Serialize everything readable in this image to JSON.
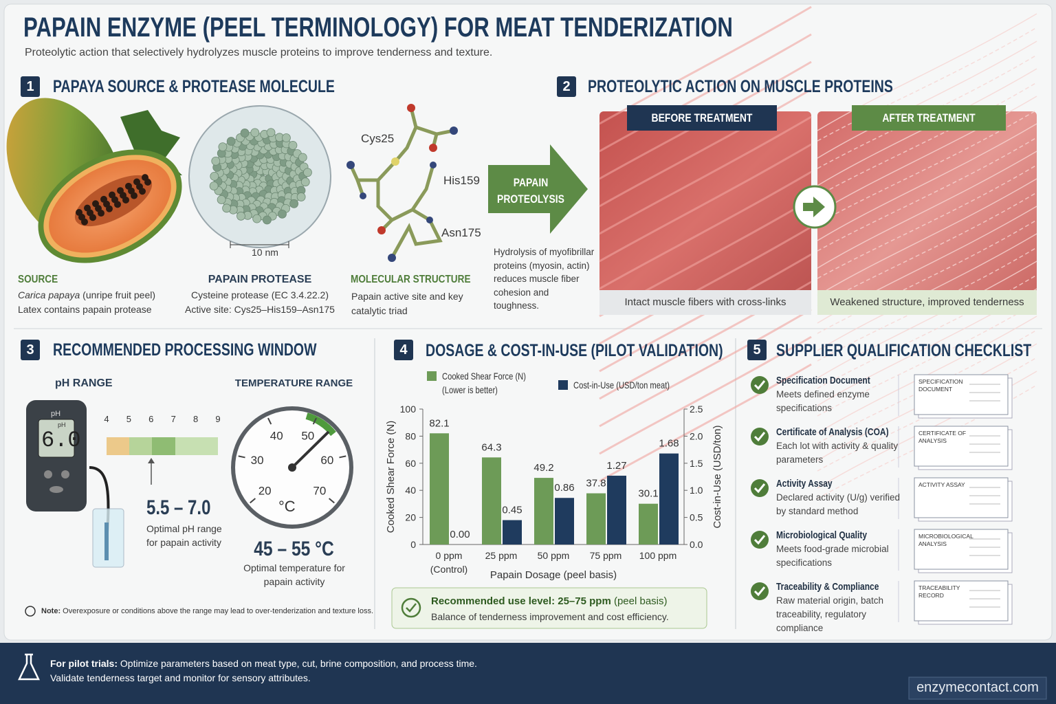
{
  "header": {
    "title": "PAPAIN ENZYME (PEEL TERMINOLOGY) FOR MEAT TENDERIZATION",
    "subtitle": "Proteolytic action that selectively hydrolyzes muscle proteins to improve tenderness and texture."
  },
  "sections": [
    {
      "number": "1",
      "title": "PAPAYA SOURCE & PROTEASE MOLECULE",
      "source": {
        "label": "SOURCE",
        "species": "Carica papaya",
        "note": "(unripe fruit peel)",
        "detail": "Latex contains papain protease"
      },
      "protease": {
        "label": "PAPAIN PROTEASE",
        "scale": "10 nm",
        "lines": [
          "Cysteine protease (EC 3.4.22.2)",
          "Active site: Cys25–His159–Asn175"
        ]
      },
      "structure": {
        "label": "MOLECULAR STRUCTURE",
        "residues": [
          "Cys25",
          "His159",
          "Asn175"
        ],
        "description": "Papain active site and key catalytic triad"
      }
    },
    {
      "number": "2",
      "title": "PROTEOLYTIC ACTION ON MUSCLE PROTEINS",
      "arrow_label": [
        "PAPAIN",
        "PROTEOLYSIS"
      ],
      "description": "Hydrolysis of myofibrillar proteins (myosin, actin) reduces muscle fiber cohesion and toughness.",
      "before": {
        "label": "BEFORE TREATMENT",
        "caption": "Intact muscle fibers with cross-links"
      },
      "after": {
        "label": "AFTER TREATMENT",
        "caption": "Weakened structure, improved tenderness"
      }
    },
    {
      "number": "3",
      "title": "RECOMMENDED PROCESSING WINDOW",
      "ph": {
        "title": "pH RANGE",
        "meter_unit": "pH",
        "meter_reading": "6.0",
        "scale": [
          4,
          5,
          6,
          7,
          8,
          9
        ],
        "range": "5.5 – 7.0",
        "description": "Optimal pH range for papain activity"
      },
      "temperature": {
        "title": "TEMPERATURE RANGE",
        "dial": [
          20,
          30,
          40,
          50,
          60,
          70
        ],
        "unit": "°C",
        "range": "45 – 55 °C",
        "description": "Optimal temperature for papain activity"
      },
      "note": {
        "label": "Note:",
        "text": "Overexposure or conditions above the range may lead to over-tenderization and texture loss."
      }
    },
    {
      "number": "4",
      "title": "DOSAGE & COST-IN-USE (PILOT VALIDATION)",
      "recommendation": {
        "headline": "Recommended use level: 25–75 ppm",
        "qualifier": "(peel basis)",
        "text": "Balance of tenderness improvement and cost efficiency."
      }
    },
    {
      "number": "5",
      "title": "SUPPLIER QUALIFICATION CHECKLIST",
      "items": [
        {
          "title": "Specification Document",
          "description": "Meets defined enzyme specifications",
          "document": "SPECIFICATION DOCUMENT"
        },
        {
          "title": "Certificate of Analysis (COA)",
          "description": "Each lot with activity & quality parameters",
          "document": "CERTIFICATE OF ANALYSIS"
        },
        {
          "title": "Activity Assay",
          "description": "Declared activity (U/g) verified by standard method",
          "document": "ACTIVITY ASSAY"
        },
        {
          "title": "Microbiological Quality",
          "description": "Meets food-grade microbial specifications",
          "document": "MICROBIOLOGICAL ANALYSIS"
        },
        {
          "title": "Traceability & Compliance",
          "description": "Raw material origin, batch traceability, regulatory compliance",
          "document": "TRACEABILITY RECORD"
        }
      ]
    }
  ],
  "chart_data": {
    "type": "bar",
    "categories": [
      "0 ppm (Control)",
      "25 ppm",
      "50 ppm",
      "75 ppm",
      "100 ppm"
    ],
    "xlabel": "Papain Dosage (peel basis)",
    "ylabel": "Cooked Shear Force (N)",
    "y2label": "Cost-in-Use (USD/ton)",
    "ylim": [
      0,
      100
    ],
    "yticks": [
      0,
      20,
      40,
      60,
      80,
      100
    ],
    "y2lim": [
      0,
      2.5
    ],
    "y2ticks": [
      {
        "value": 0,
        "label": "0.0"
      },
      0.5,
      {
        "value": 1,
        "label": "1.0"
      },
      1.5,
      {
        "value": 2,
        "label": "2.0"
      },
      2.5
    ],
    "series": [
      {
        "name": "Cooked Shear Force (N)",
        "legend_note": "(Lower is better)",
        "color": "#6d9b57",
        "values": [
          82.1,
          64.3,
          49.2,
          37.8,
          30.1
        ]
      },
      {
        "name": "Cost-in-Use (USD/ton meat)",
        "color": "#1f3b5e",
        "axis": "y2",
        "values": [
          0,
          0.45,
          0.86,
          1.27,
          1.68
        ],
        "value_labels": [
          "0.00",
          "0.45",
          "0.86",
          "1.27",
          "1.68"
        ]
      }
    ]
  },
  "footer": {
    "lead": "For pilot trials:",
    "line1": "Optimize parameters based on meat type, cut, brine composition, and process time.",
    "line2": "Validate tenderness target and monitor for sensory attributes.",
    "website": "enzymecontact.com"
  }
}
